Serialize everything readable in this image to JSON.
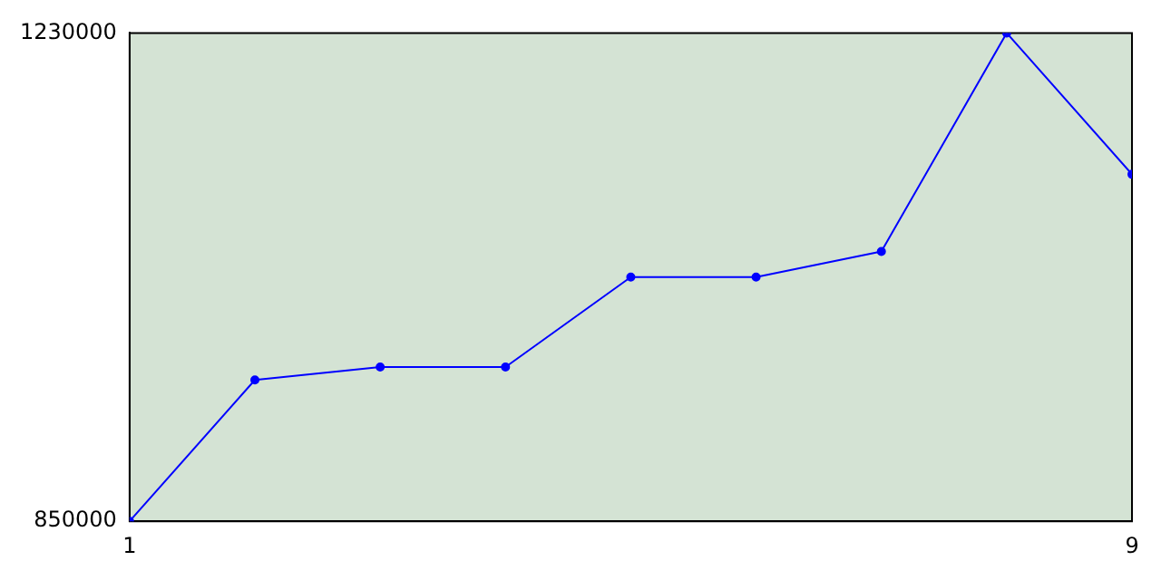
{
  "chart_data": {
    "type": "line",
    "x": [
      1,
      2,
      3,
      4,
      5,
      6,
      7,
      8,
      9
    ],
    "series": [
      {
        "color": "#0000ff",
        "values": [
          850000,
          960000,
          970000,
          970000,
          1040000,
          1040000,
          1060000,
          1230000,
          1120000
        ]
      }
    ],
    "xlim": [
      1,
      9
    ],
    "xticks": [
      1,
      9
    ],
    "ylim": [
      850000,
      1230000
    ],
    "yticks": [
      850000,
      1230000
    ],
    "grid": false,
    "legend": false,
    "marker": "circle",
    "line_style": "solid"
  }
}
